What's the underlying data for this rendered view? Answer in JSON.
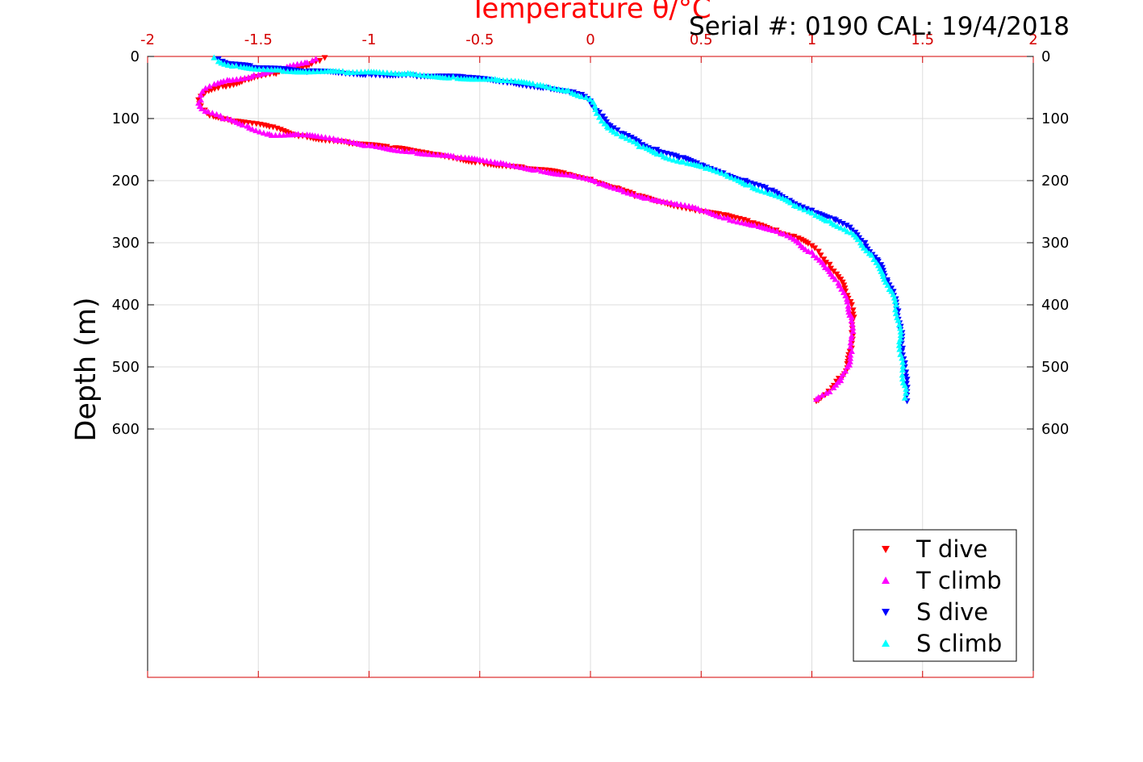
{
  "chart_data": {
    "type": "scatter",
    "title": "Temperature θ/°C",
    "annotation": "Serial #: 0190  CAL: 19/4/2018",
    "ylabel": "Depth (m)",
    "xlim": [
      -2,
      2
    ],
    "ylim": [
      0,
      1000
    ],
    "y_reversed": true,
    "grid": true,
    "x_ticks": [
      "-2",
      "-1.5",
      "-1",
      "-0.5",
      "0",
      "0.5",
      "1",
      "1.5",
      "2"
    ],
    "y_ticks": [
      "0",
      "100",
      "200",
      "300",
      "400",
      "500",
      "600"
    ],
    "legend_position": "bottom-right",
    "colors": {
      "axis": "#d40000",
      "title": "#ff0000",
      "grid": "#dddddd"
    },
    "series": [
      {
        "name": "T dive",
        "marker": "triangle-down",
        "color": "#ff0000",
        "points": [
          [
            1.02,
            555
          ],
          [
            1.06,
            545
          ],
          [
            1.1,
            530
          ],
          [
            1.14,
            515
          ],
          [
            1.16,
            495
          ],
          [
            1.18,
            470
          ],
          [
            1.18,
            445
          ],
          [
            1.19,
            420
          ],
          [
            1.18,
            400
          ],
          [
            1.16,
            385
          ],
          [
            1.12,
            355
          ],
          [
            1.08,
            335
          ],
          [
            1.04,
            320
          ],
          [
            1.0,
            305
          ],
          [
            0.92,
            290
          ],
          [
            0.84,
            280
          ],
          [
            0.72,
            268
          ],
          [
            0.6,
            255
          ],
          [
            0.46,
            245
          ],
          [
            0.32,
            235
          ],
          [
            0.2,
            225
          ],
          [
            0.12,
            212
          ],
          [
            0.0,
            198
          ],
          [
            -0.1,
            190
          ],
          [
            -0.3,
            180
          ],
          [
            -0.5,
            170
          ],
          [
            -0.7,
            158
          ],
          [
            -0.9,
            148
          ],
          [
            -1.1,
            138
          ],
          [
            -1.3,
            128
          ],
          [
            -1.45,
            113
          ],
          [
            -1.62,
            105
          ],
          [
            -1.72,
            95
          ],
          [
            -1.76,
            80
          ],
          [
            -1.77,
            70
          ],
          [
            -1.74,
            58
          ],
          [
            -1.66,
            48
          ],
          [
            -1.56,
            38
          ],
          [
            -1.42,
            28
          ],
          [
            -1.3,
            18
          ],
          [
            -1.24,
            8
          ],
          [
            -1.2,
            2
          ]
        ]
      },
      {
        "name": "T climb",
        "marker": "triangle-up",
        "color": "#ff00ff",
        "points": [
          [
            1.02,
            552
          ],
          [
            1.08,
            540
          ],
          [
            1.13,
            522
          ],
          [
            1.16,
            500
          ],
          [
            1.18,
            475
          ],
          [
            1.18,
            450
          ],
          [
            1.18,
            420
          ],
          [
            1.16,
            395
          ],
          [
            1.12,
            365
          ],
          [
            1.06,
            340
          ],
          [
            1.0,
            315
          ],
          [
            0.94,
            300
          ],
          [
            0.86,
            285
          ],
          [
            0.74,
            272
          ],
          [
            0.62,
            260
          ],
          [
            0.5,
            248
          ],
          [
            0.38,
            238
          ],
          [
            0.26,
            228
          ],
          [
            0.14,
            215
          ],
          [
            0.04,
            205
          ],
          [
            -0.08,
            192
          ],
          [
            -0.24,
            182
          ],
          [
            -0.42,
            172
          ],
          [
            -0.6,
            163
          ],
          [
            -0.8,
            153
          ],
          [
            -1.0,
            143
          ],
          [
            -1.15,
            135
          ],
          [
            -1.3,
            126
          ],
          [
            -1.45,
            125
          ],
          [
            -1.55,
            112
          ],
          [
            -1.66,
            100
          ],
          [
            -1.74,
            88
          ],
          [
            -1.77,
            75
          ],
          [
            -1.76,
            62
          ],
          [
            -1.72,
            48
          ],
          [
            -1.64,
            38
          ],
          [
            -1.52,
            30
          ],
          [
            -1.38,
            20
          ],
          [
            -1.28,
            10
          ],
          [
            -1.24,
            4
          ]
        ]
      },
      {
        "name": "S dive",
        "marker": "triangle-down",
        "color": "#0000ff",
        "points": [
          [
            1.43,
            555
          ],
          [
            1.43,
            540
          ],
          [
            1.43,
            520
          ],
          [
            1.42,
            500
          ],
          [
            1.41,
            470
          ],
          [
            1.4,
            440
          ],
          [
            1.39,
            410
          ],
          [
            1.37,
            385
          ],
          [
            1.34,
            360
          ],
          [
            1.3,
            330
          ],
          [
            1.24,
            300
          ],
          [
            1.18,
            280
          ],
          [
            1.1,
            262
          ],
          [
            1.0,
            248
          ],
          [
            0.9,
            232
          ],
          [
            0.8,
            215
          ],
          [
            0.7,
            200
          ],
          [
            0.6,
            188
          ],
          [
            0.5,
            175
          ],
          [
            0.4,
            163
          ],
          [
            0.3,
            150
          ],
          [
            0.22,
            138
          ],
          [
            0.14,
            124
          ],
          [
            0.08,
            110
          ],
          [
            0.04,
            90
          ],
          [
            0.0,
            72
          ],
          [
            -0.06,
            60
          ],
          [
            -0.2,
            50
          ],
          [
            -0.36,
            42
          ],
          [
            -0.56,
            35
          ],
          [
            -0.8,
            30
          ],
          [
            -1.0,
            28
          ],
          [
            -1.28,
            25
          ],
          [
            -1.52,
            18
          ],
          [
            -1.65,
            10
          ],
          [
            -1.68,
            4
          ]
        ]
      },
      {
        "name": "S climb",
        "marker": "triangle-up",
        "color": "#00ffff",
        "points": [
          [
            1.42,
            550
          ],
          [
            1.42,
            530
          ],
          [
            1.41,
            505
          ],
          [
            1.4,
            480
          ],
          [
            1.4,
            455
          ],
          [
            1.39,
            425
          ],
          [
            1.38,
            400
          ],
          [
            1.35,
            375
          ],
          [
            1.32,
            350
          ],
          [
            1.27,
            320
          ],
          [
            1.22,
            300
          ],
          [
            1.16,
            282
          ],
          [
            1.08,
            265
          ],
          [
            1.0,
            252
          ],
          [
            0.92,
            240
          ],
          [
            0.82,
            222
          ],
          [
            0.72,
            207
          ],
          [
            0.62,
            193
          ],
          [
            0.52,
            180
          ],
          [
            0.42,
            170
          ],
          [
            0.32,
            158
          ],
          [
            0.22,
            145
          ],
          [
            0.14,
            128
          ],
          [
            0.08,
            115
          ],
          [
            0.04,
            98
          ],
          [
            0.02,
            80
          ],
          [
            -0.02,
            66
          ],
          [
            -0.1,
            55
          ],
          [
            -0.24,
            46
          ],
          [
            -0.42,
            38
          ],
          [
            -0.62,
            33
          ],
          [
            -0.84,
            28
          ],
          [
            -1.1,
            26
          ],
          [
            -1.4,
            22
          ],
          [
            -1.6,
            15
          ],
          [
            -1.68,
            8
          ],
          [
            -1.7,
            2
          ]
        ]
      }
    ]
  }
}
